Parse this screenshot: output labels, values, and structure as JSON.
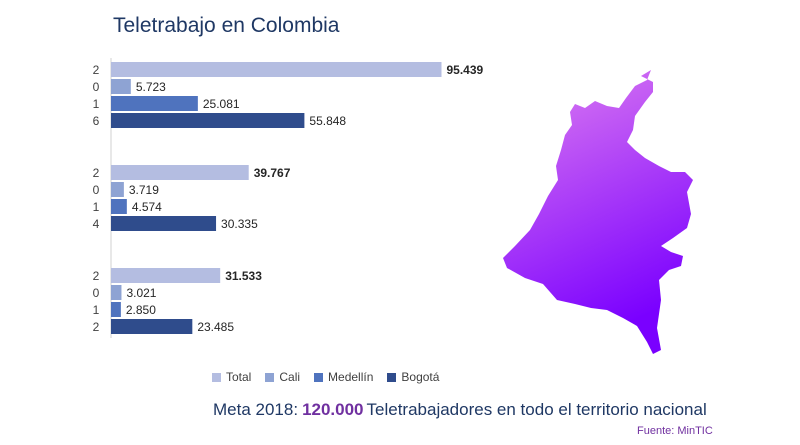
{
  "title": "Teletrabajo en Colombia",
  "chart_data": {
    "type": "bar",
    "orientation": "horizontal",
    "groups": [
      {
        "year_digits": [
          "2",
          "0",
          "1",
          "6"
        ],
        "values": {
          "Total": 95439,
          "Cali": 5723,
          "Medellín": 25081,
          "Bogotá": 55848
        }
      },
      {
        "year_digits": [
          "2",
          "0",
          "1",
          "4"
        ],
        "values": {
          "Total": 39767,
          "Cali": 3719,
          "Medellín": 4574,
          "Bogotá": 30335
        }
      },
      {
        "year_digits": [
          "2",
          "0",
          "1",
          "2"
        ],
        "values": {
          "Total": 31533,
          "Cali": 3021,
          "Medellín": 2850,
          "Bogotá": 23485
        }
      }
    ],
    "series": [
      {
        "name": "Total",
        "color": "#b4bde1"
      },
      {
        "name": "Cali",
        "color": "#8ea3d3"
      },
      {
        "name": "Medellín",
        "color": "#4f73be"
      },
      {
        "name": "Bogotá",
        "color": "#2f4c8c"
      }
    ],
    "value_labels": [
      [
        "95.439",
        "5.723",
        "25.081",
        "55.848"
      ],
      [
        "39.767",
        "3.719",
        "4.574",
        "30.335"
      ],
      [
        "31.533",
        "3.021",
        "2.850",
        "23.485"
      ]
    ],
    "xlim": [
      0,
      100000
    ],
    "legend_position": "bottom",
    "grid": false
  },
  "footer": {
    "meta_label": "Meta 2018:",
    "meta_goal": "120.000",
    "meta_rest": "Teletrabajadores  en todo el territorio nacional",
    "source": "Fuente: MinTIC"
  },
  "colors": {
    "title": "#1f3864",
    "accent": "#7030a0",
    "map_gradient_top": "#e080f0",
    "map_gradient_bottom": "#7a00ff"
  },
  "icons": {
    "map": "colombia-map-icon"
  }
}
